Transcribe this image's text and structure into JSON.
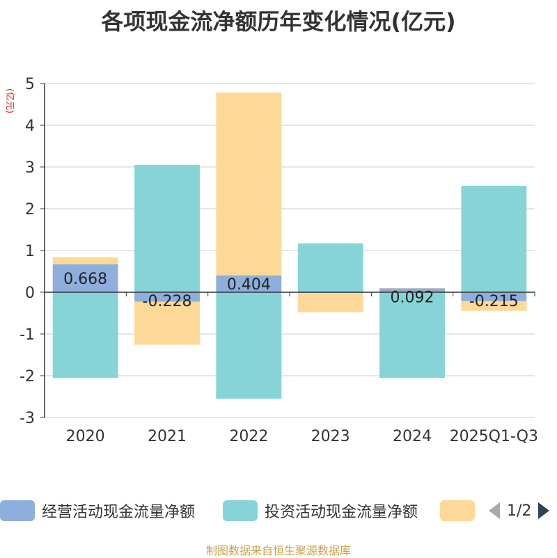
{
  "chart_data": {
    "type": "bar",
    "stacked": true,
    "title": "各项现金流净额历年变化情况(亿元)",
    "ylabel": "(亿元)",
    "categories": [
      "2020",
      "2021",
      "2022",
      "2023",
      "2024",
      "2025Q1-Q3"
    ],
    "ylim": [
      -3,
      5
    ],
    "yticks": [
      -3,
      -2,
      -1,
      0,
      1,
      2,
      3,
      4,
      5
    ],
    "grid": true,
    "series": [
      {
        "name": "经营活动现金流量净额",
        "color": "#8eaedc",
        "values": [
          0.668,
          -0.228,
          0.404,
          -0.02,
          0.092,
          -0.215
        ],
        "labels": [
          "0.668",
          "-0.228",
          "0.404",
          "",
          "0.092",
          "-0.215"
        ]
      },
      {
        "name": "投资活动现金流量净额",
        "color": "#86d4d7",
        "values": [
          -2.05,
          3.05,
          -2.55,
          1.17,
          -2.05,
          2.55
        ],
        "labels": [
          "",
          "",
          "",
          "",
          "",
          ""
        ]
      },
      {
        "name": "",
        "color": "#fdd897",
        "values": [
          0.17,
          -1.03,
          4.38,
          -0.46,
          0.01,
          -0.23
        ],
        "labels": [
          "",
          "",
          "",
          "",
          "",
          ""
        ]
      }
    ],
    "legend_position": "bottom"
  },
  "legend": {
    "page": "1/2",
    "prev_icon": "triangle-left-icon",
    "next_icon": "triangle-right-icon"
  },
  "source": "制图数据来自恒生聚源数据库",
  "colors": {
    "title": "#333333",
    "ylabel": "#e0302a",
    "source": "#c8a04a"
  }
}
